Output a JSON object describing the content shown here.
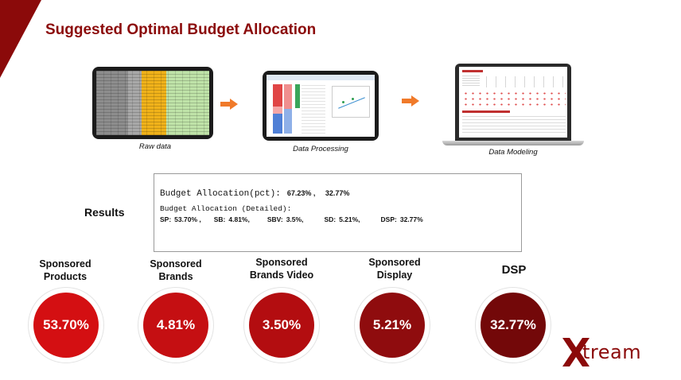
{
  "title": "Suggested Optimal Budget Allocation",
  "pipeline": {
    "steps": [
      {
        "caption": "Raw data"
      },
      {
        "caption": "Data Processing"
      },
      {
        "caption": "Data Modeling"
      }
    ]
  },
  "results": {
    "label": "Results",
    "pct_label": "Budget Allocation(pct):",
    "pct_values": "67.23% ,     32.77%",
    "detailed_label": "Budget Allocation (Detailed):",
    "detailed": [
      {
        "key": "SP:",
        "value": "53.70% ,"
      },
      {
        "key": "SB:",
        "value": "4.81%,"
      },
      {
        "key": "SBV:",
        "value": "3.5%,"
      },
      {
        "key": "SD:",
        "value": "5.21%,"
      },
      {
        "key": "DSP:",
        "value": "32.77%"
      }
    ]
  },
  "metrics": [
    {
      "label_line1": "Sponsored",
      "label_line2": "Products",
      "value": "53.70%",
      "color": "#d40f12"
    },
    {
      "label_line1": "Sponsored",
      "label_line2": "Brands",
      "value": "4.81%",
      "color": "#c50f12"
    },
    {
      "label_line1": "Sponsored",
      "label_line2": "Brands Video",
      "value": "3.50%",
      "color": "#b30d10"
    },
    {
      "label_line1": "Sponsored",
      "label_line2": "Display",
      "value": "5.21%",
      "color": "#8f0c0e"
    },
    {
      "label_line1": "DSP",
      "label_line2": "",
      "value": "32.77%",
      "color": "#730809"
    }
  ],
  "brand": {
    "logo_text": "tream"
  },
  "colors": {
    "accent": "#8b0a0a"
  }
}
